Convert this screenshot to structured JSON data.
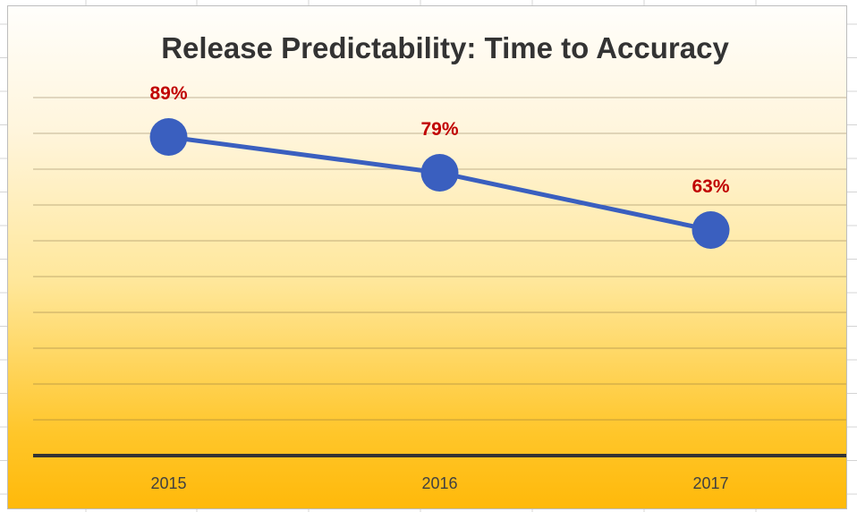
{
  "chart_data": {
    "type": "line",
    "title": "Release Predictability: Time to Accuracy",
    "categories": [
      "2015",
      "2016",
      "2017"
    ],
    "values": [
      0.89,
      0.79,
      0.63
    ],
    "data_labels": [
      "89%",
      "79%",
      "63%"
    ],
    "ylim": [
      0,
      1
    ],
    "y_gridline_step": 0.1,
    "grid": true,
    "legend": "none",
    "colors": {
      "series": "#3a5fbf",
      "data_label": "#c00000",
      "axis": "#333333",
      "title": "#333333",
      "background_top": "#ffffff",
      "background_bottom": "#ffb90a"
    }
  }
}
